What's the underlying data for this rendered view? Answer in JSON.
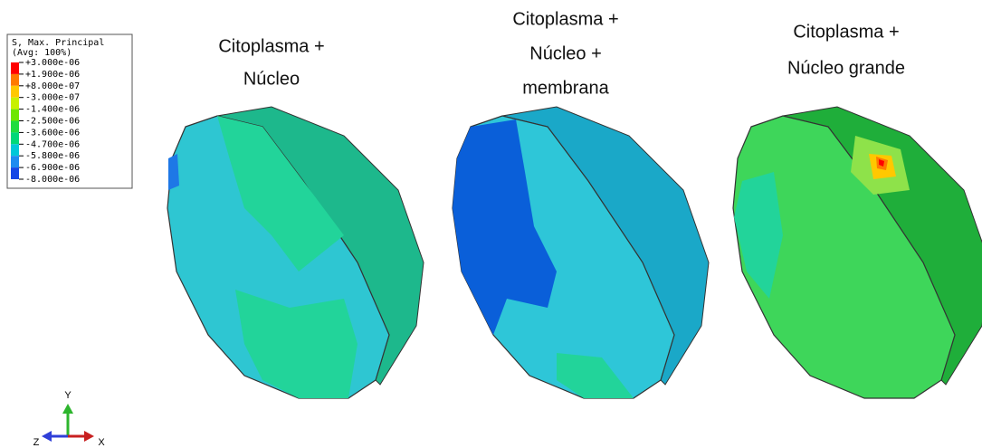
{
  "legend": {
    "title": "S, Max. Principal",
    "subtitle": "(Avg: 100%)",
    "entries": [
      "+3.000e-06",
      "+1.900e-06",
      "+8.000e-07",
      "-3.000e-07",
      "-1.400e-06",
      "-2.500e-06",
      "-3.600e-06",
      "-4.700e-06",
      "-5.800e-06",
      "-6.900e-06",
      "-8.000e-06"
    ],
    "colors": [
      "#ff0000",
      "#ff7a00",
      "#ffc800",
      "#c8f000",
      "#6ee600",
      "#20dc40",
      "#00d878",
      "#00c8d8",
      "#1e8cf0",
      "#1446e6",
      "#0000e6"
    ]
  },
  "captions": [
    {
      "lines": [
        "Citoplasma +",
        "Núcleo"
      ]
    },
    {
      "lines": [
        "Citoplasma +",
        "Núcleo +",
        "membrana"
      ]
    },
    {
      "lines": [
        "Citoplasma +",
        "Núcleo grande"
      ]
    }
  ],
  "triad": {
    "y": "Y",
    "z": "Z",
    "x": "X"
  }
}
